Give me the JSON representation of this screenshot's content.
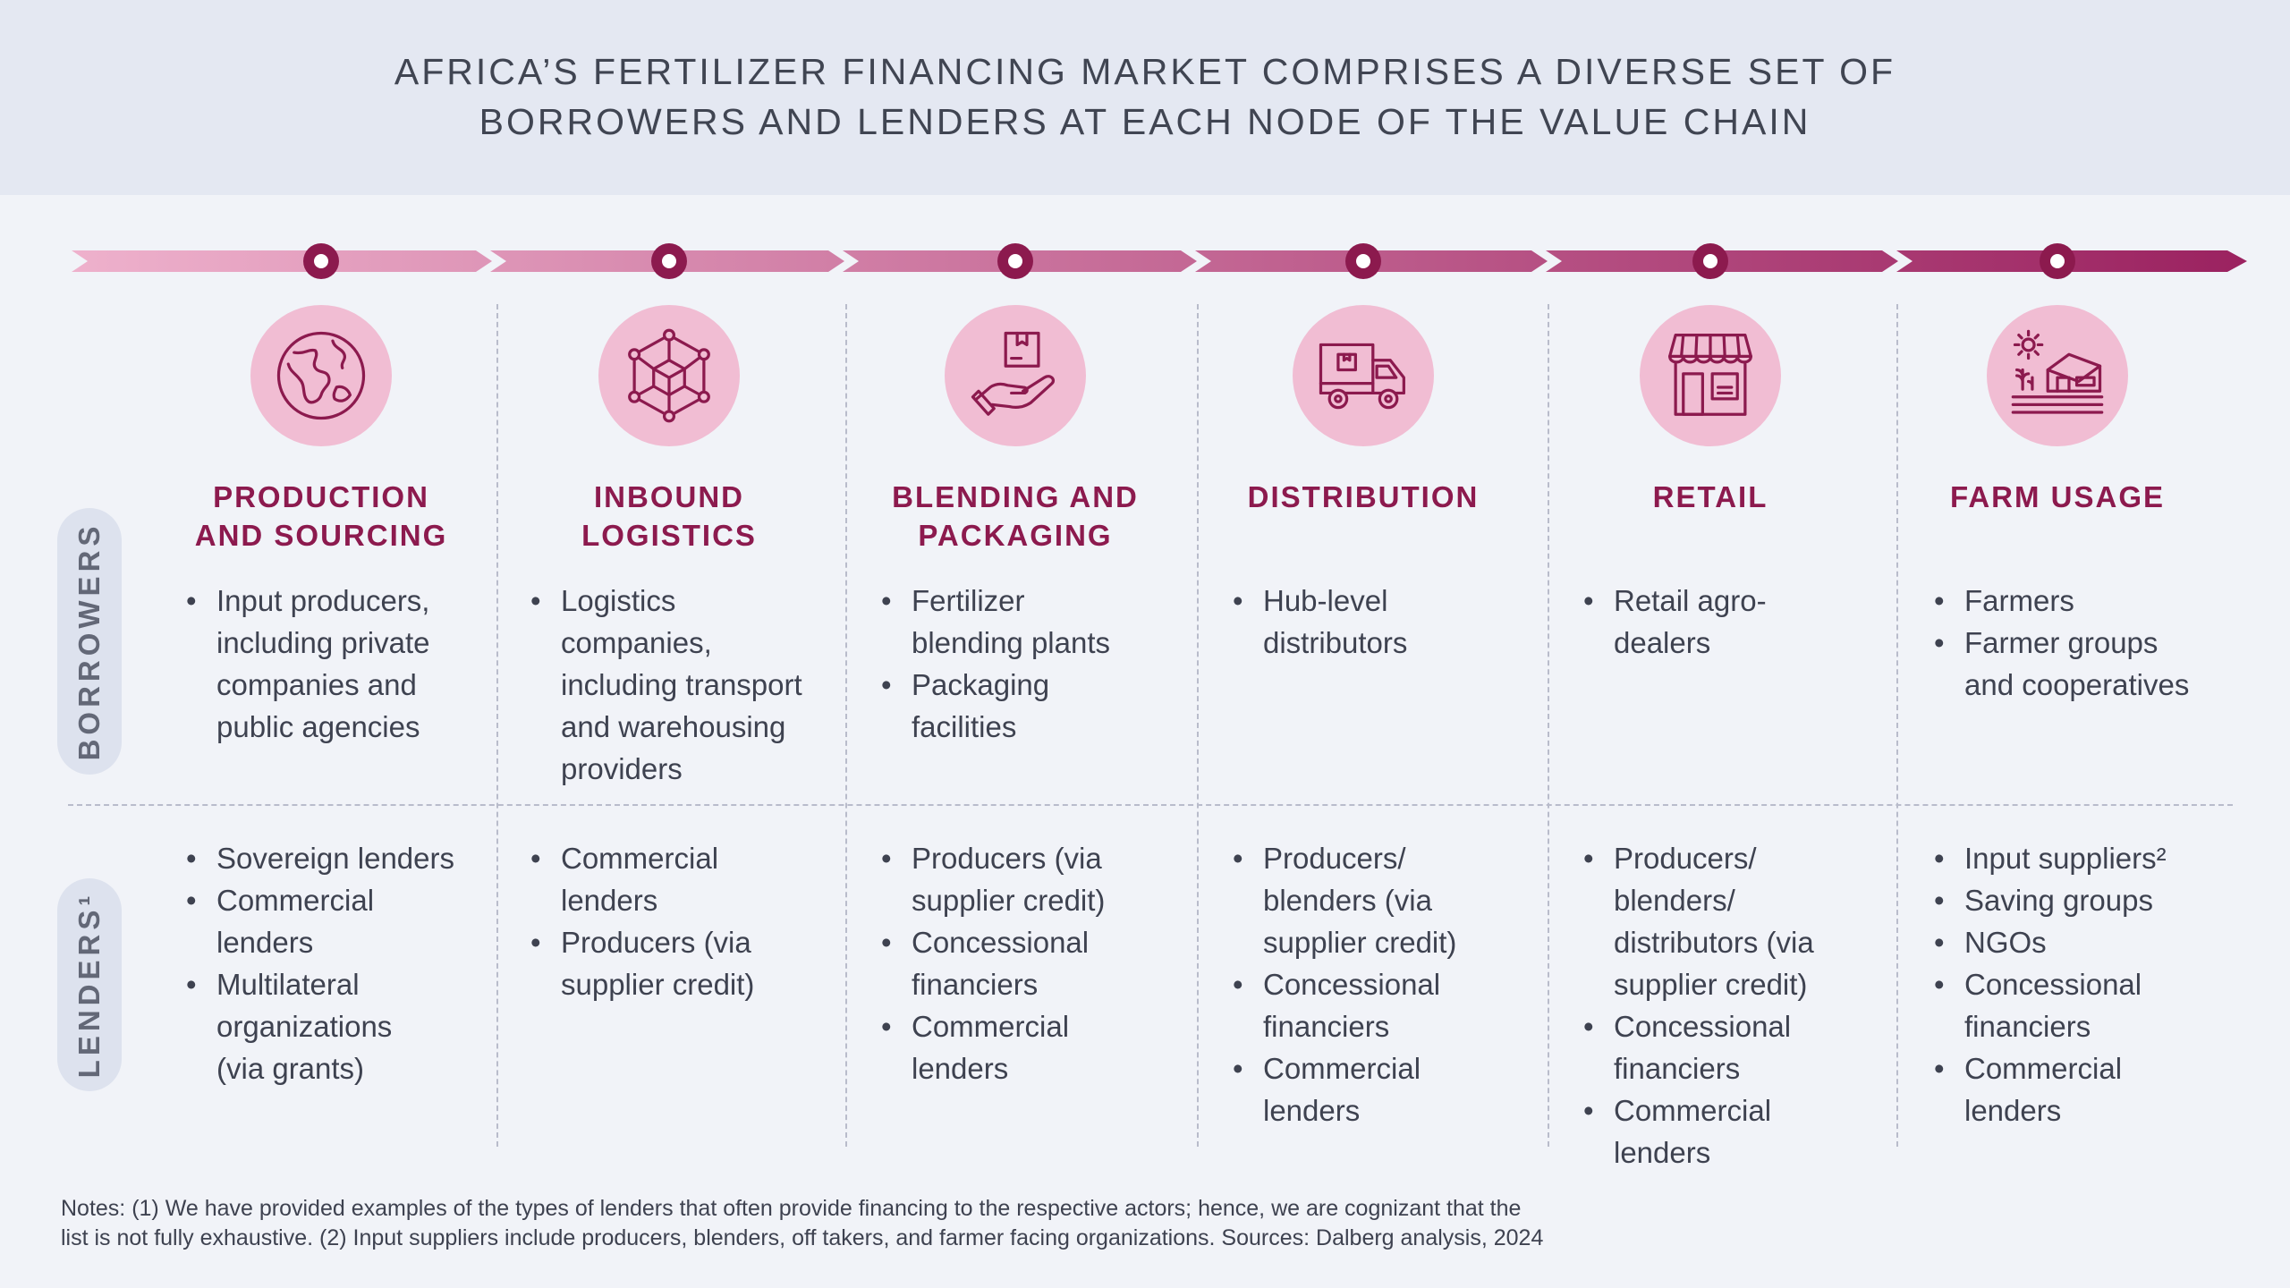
{
  "title": {
    "line1": "AFRICA’S FERTILIZER FINANCING MARKET COMPRISES A DIVERSE SET OF",
    "line2": "BORROWERS AND LENDERS AT EACH NODE OF THE VALUE CHAIN"
  },
  "row_labels": {
    "borrowers": "BORROWERS",
    "lenders": "LENDERS¹"
  },
  "colors": {
    "accent": "#8c1a4e",
    "icon_bg": "#f1bdd3",
    "arrow_start": "#eeb1cc",
    "arrow_end": "#9b2260"
  },
  "stages": [
    {
      "icon": "globe-icon",
      "title": [
        "PRODUCTION",
        "AND SOURCING"
      ],
      "borrowers": [
        "Input producers,\nincluding private\ncompanies and\npublic agencies"
      ],
      "lenders": [
        "Sovereign lenders",
        "Commercial\nlenders",
        "Multilateral\norganizations\n(via grants)"
      ]
    },
    {
      "icon": "network-cube-icon",
      "title": [
        "INBOUND",
        "LOGISTICS"
      ],
      "borrowers": [
        "Logistics\ncompanies,\nincluding transport\nand warehousing\nproviders"
      ],
      "lenders": [
        "Commercial\nlenders",
        "Producers (via\nsupplier credit)"
      ]
    },
    {
      "icon": "hand-package-icon",
      "title": [
        "BLENDING AND",
        "PACKAGING"
      ],
      "borrowers": [
        "Fertilizer\nblending plants",
        "Packaging\nfacilities"
      ],
      "lenders": [
        "Producers (via\nsupplier credit)",
        "Concessional\nfinanciers",
        "Commercial\nlenders"
      ]
    },
    {
      "icon": "delivery-truck-icon",
      "title": [
        "DISTRIBUTION"
      ],
      "borrowers": [
        "Hub-level\ndistributors"
      ],
      "lenders": [
        "Producers/\nblenders (via\nsupplier credit)",
        "Concessional\nfinanciers",
        "Commercial\nlenders"
      ]
    },
    {
      "icon": "storefront-icon",
      "title": [
        "RETAIL"
      ],
      "borrowers": [
        "Retail agro-\ndealers"
      ],
      "lenders": [
        "Producers/\nblenders/\ndistributors (via\nsupplier credit)",
        "Concessional\nfinanciers",
        "Commercial\nlenders"
      ]
    },
    {
      "icon": "farmhouse-icon",
      "title": [
        "FARM USAGE"
      ],
      "borrowers": [
        "Farmers",
        "Farmer groups\nand cooperatives"
      ],
      "lenders": [
        "Input suppliers²",
        "Saving groups",
        "NGOs",
        "Concessional\nfinanciers",
        "Commercial\nlenders"
      ]
    }
  ],
  "notes": {
    "line1": "Notes: (1) We have provided examples of the types of lenders that often provide financing to the respective actors; hence, we are cognizant that the",
    "line2": "list is not fully exhaustive. (2) Input suppliers include producers, blenders, off takers, and farmer facing organizations. Sources: Dalberg analysis, 2024"
  }
}
